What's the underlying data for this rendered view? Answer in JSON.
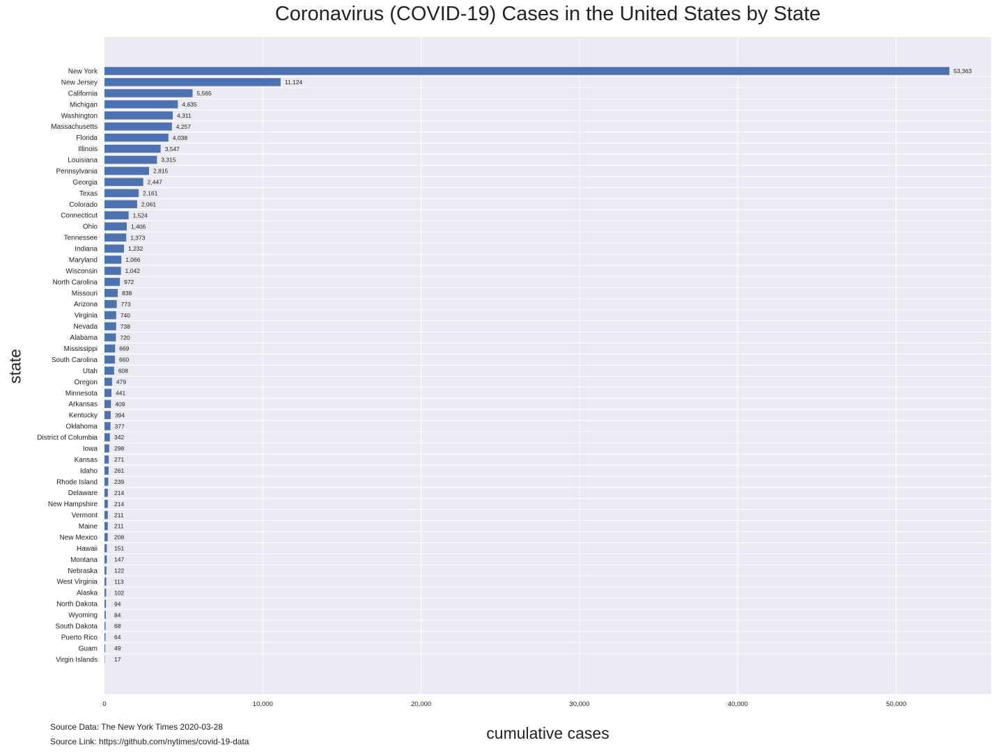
{
  "chart_data": {
    "type": "bar",
    "orientation": "horizontal",
    "title": "Coronavirus (COVID-19) Cases in the United States by State",
    "xlabel": "cumulative cases",
    "ylabel": "state",
    "xlim": [
      0,
      56000
    ],
    "xticks": [
      0,
      10000,
      20000,
      30000,
      40000,
      50000
    ],
    "xtick_labels": [
      "0",
      "10,000",
      "20,000",
      "30,000",
      "40,000",
      "50,000"
    ],
    "grid": true,
    "bar_color": "#4c72b0",
    "background_color": "#eaeaf2",
    "categories": [
      "New York",
      "New Jersey",
      "California",
      "Michigan",
      "Washington",
      "Massachusetts",
      "Florida",
      "Illinois",
      "Louisiana",
      "Pennsylvania",
      "Georgia",
      "Texas",
      "Colorado",
      "Connecticut",
      "Ohio",
      "Tennessee",
      "Indiana",
      "Maryland",
      "Wisconsin",
      "North Carolina",
      "Missouri",
      "Arizona",
      "Virginia",
      "Nevada",
      "Alabama",
      "Mississippi",
      "South Carolina",
      "Utah",
      "Oregon",
      "Minnesota",
      "Arkansas",
      "Kentucky",
      "Oklahoma",
      "District of Columbia",
      "Iowa",
      "Kansas",
      "Idaho",
      "Rhode Island",
      "Delaware",
      "New Hampshire",
      "Vermont",
      "Maine",
      "New Mexico",
      "Hawaii",
      "Montana",
      "Nebraska",
      "West Virginia",
      "Alaska",
      "North Dakota",
      "Wyoming",
      "South Dakota",
      "Puerto Rico",
      "Guam",
      "Virgin Islands"
    ],
    "values": [
      53363,
      11124,
      5565,
      4635,
      4311,
      4257,
      4038,
      3547,
      3315,
      2815,
      2447,
      2161,
      2061,
      1524,
      1406,
      1373,
      1232,
      1066,
      1042,
      972,
      838,
      773,
      740,
      738,
      720,
      669,
      660,
      608,
      479,
      441,
      409,
      394,
      377,
      342,
      298,
      271,
      261,
      239,
      214,
      214,
      211,
      211,
      208,
      151,
      147,
      122,
      113,
      102,
      94,
      84,
      68,
      64,
      49,
      17
    ],
    "value_labels": [
      "53,363",
      "11,124",
      "5,565",
      "4,635",
      "4,311",
      "4,257",
      "4,038",
      "3,547",
      "3,315",
      "2,815",
      "2,447",
      "2,161",
      "2,061",
      "1,524",
      "1,406",
      "1,373",
      "1,232",
      "1,066",
      "1,042",
      "972",
      "838",
      "773",
      "740",
      "738",
      "720",
      "669",
      "660",
      "608",
      "479",
      "441",
      "409",
      "394",
      "377",
      "342",
      "298",
      "271",
      "261",
      "239",
      "214",
      "214",
      "211",
      "211",
      "208",
      "151",
      "147",
      "122",
      "113",
      "102",
      "94",
      "84",
      "68",
      "64",
      "49",
      "17"
    ]
  },
  "footer": {
    "source_data": "Source Data: The New York Times 2020-03-28",
    "source_link": "Source Link: https://github.com/nytimes/covid-19-data"
  }
}
